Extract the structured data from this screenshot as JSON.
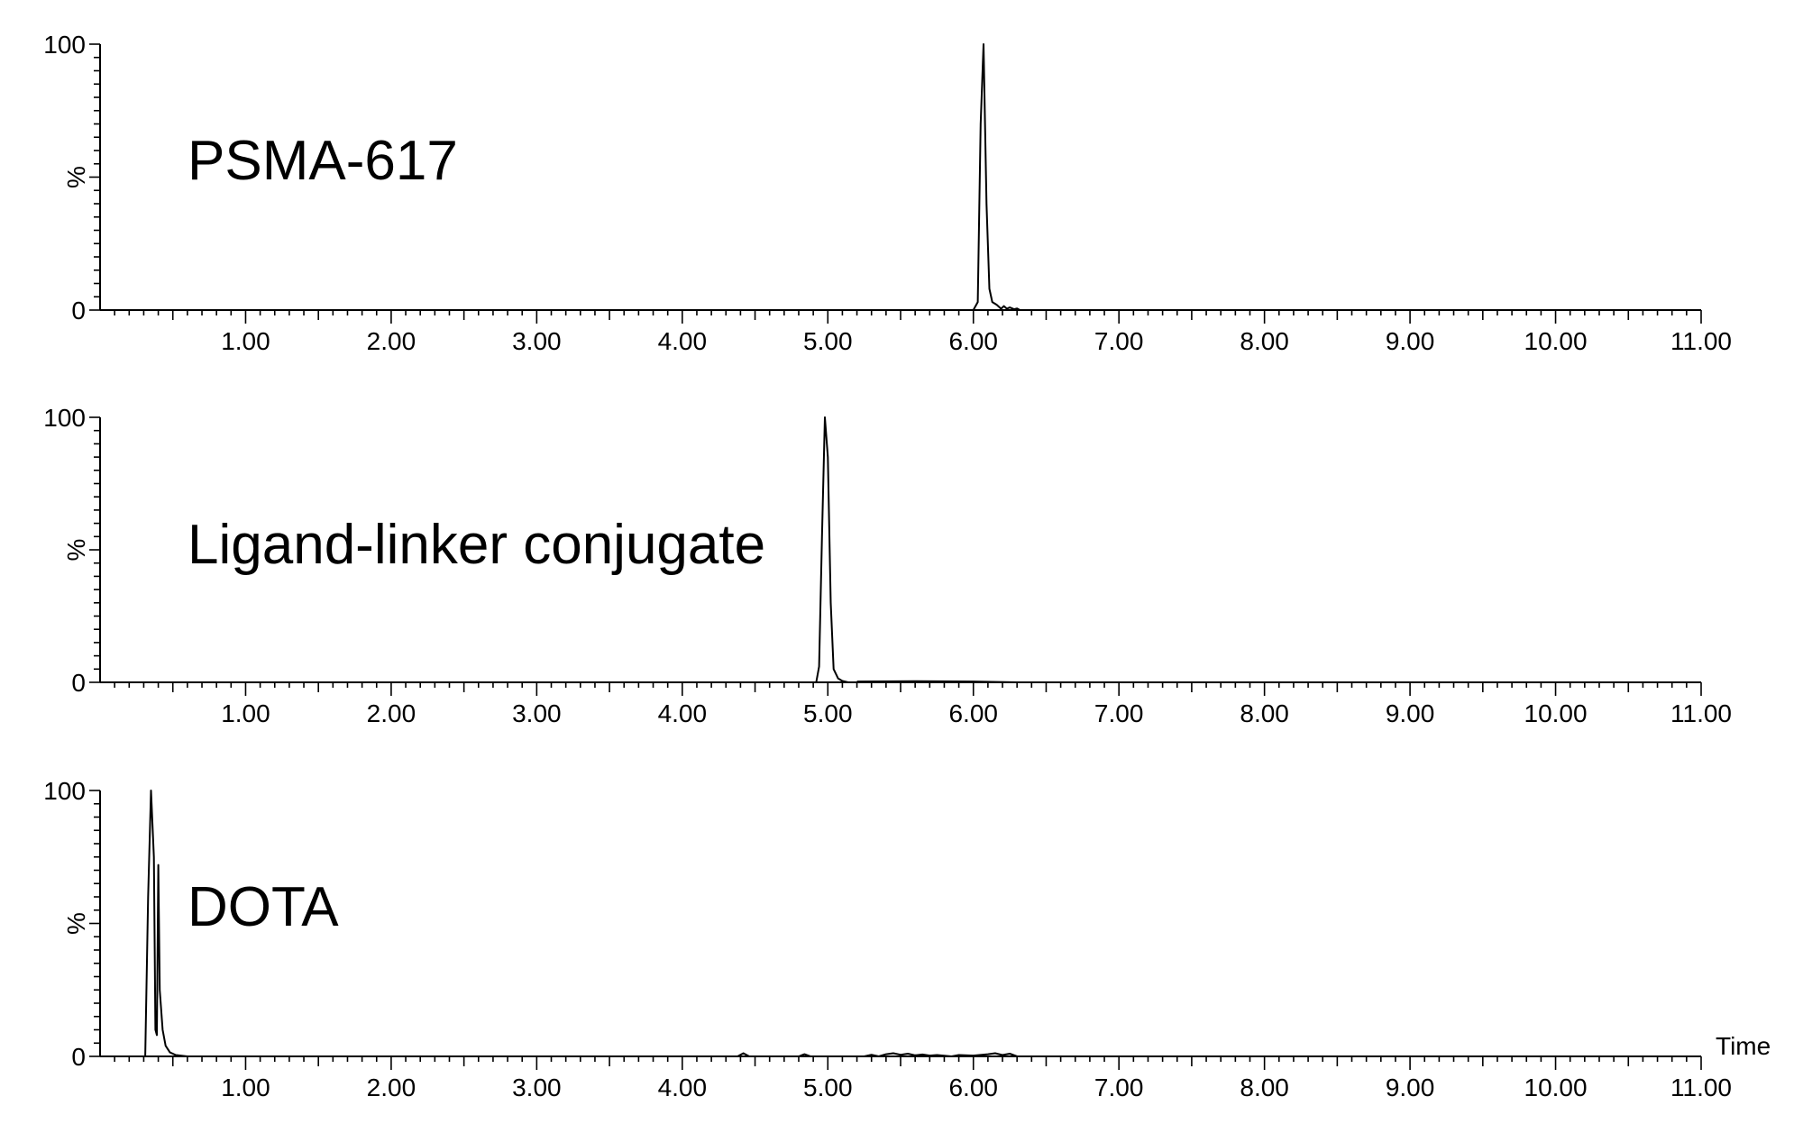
{
  "chart_data": [
    {
      "type": "line",
      "title": "PSMA-617",
      "ylabel": "%",
      "xlabel": "",
      "xlim": [
        0,
        11
      ],
      "ylim": [
        0,
        100
      ],
      "y_tick_labels": [
        "0",
        "100"
      ],
      "x_tick_labels": [
        "1.00",
        "2.00",
        "3.00",
        "4.00",
        "5.00",
        "6.00",
        "7.00",
        "8.00",
        "9.00",
        "10.00",
        "11.00"
      ],
      "grid": false,
      "x": [
        0,
        6.0,
        6.03,
        6.05,
        6.07,
        6.09,
        6.11,
        6.13,
        6.16,
        6.19,
        6.21,
        6.23,
        6.25,
        6.28,
        6.3,
        6.32,
        6.4,
        11.0
      ],
      "y": [
        0,
        0,
        3,
        70,
        100,
        40,
        8,
        3,
        2,
        0.5,
        1.5,
        0.5,
        1,
        0.3,
        0.6,
        0,
        0,
        0
      ]
    },
    {
      "type": "line",
      "title": "Ligand-linker conjugate",
      "ylabel": "%",
      "xlabel": "",
      "xlim": [
        0,
        11
      ],
      "ylim": [
        0,
        100
      ],
      "y_tick_labels": [
        "0",
        "100"
      ],
      "x_tick_labels": [
        "1.00",
        "2.00",
        "3.00",
        "4.00",
        "5.00",
        "6.00",
        "7.00",
        "8.00",
        "9.00",
        "10.00",
        "11.00"
      ],
      "grid": false,
      "x": [
        0,
        4.92,
        4.94,
        4.96,
        4.98,
        5.0,
        5.02,
        5.04,
        5.07,
        5.1,
        5.14,
        6.3,
        11.0
      ],
      "y": [
        0,
        0,
        6,
        55,
        100,
        85,
        30,
        5,
        1.5,
        0.5,
        0,
        0,
        0
      ],
      "noise_x": [
        5.2,
        5.6,
        6.0,
        6.3
      ],
      "noise_y": [
        0.3,
        0.4,
        0.3,
        0
      ]
    },
    {
      "type": "line",
      "title": "DOTA",
      "ylabel": "%",
      "xlabel": "Time",
      "xlim": [
        0,
        11
      ],
      "ylim": [
        0,
        100
      ],
      "y_tick_labels": [
        "0",
        "100"
      ],
      "x_tick_labels": [
        "1.00",
        "2.00",
        "3.00",
        "4.00",
        "5.00",
        "6.00",
        "7.00",
        "8.00",
        "9.00",
        "10.00",
        "11.00"
      ],
      "grid": false,
      "x": [
        0,
        0.3,
        0.31,
        0.33,
        0.35,
        0.37,
        0.38,
        0.39,
        0.4,
        0.41,
        0.43,
        0.45,
        0.48,
        0.52,
        0.6,
        4.38,
        4.42,
        4.46,
        4.8,
        4.84,
        4.88,
        5.25,
        5.3,
        5.35,
        5.4,
        5.45,
        5.5,
        5.55,
        5.6,
        5.65,
        5.7,
        5.75,
        5.85,
        5.9,
        6.0,
        6.1,
        6.15,
        6.2,
        6.25,
        6.3,
        11.0
      ],
      "y": [
        0,
        0,
        0,
        60,
        100,
        75,
        10,
        8,
        72,
        25,
        10,
        4,
        1.5,
        0.5,
        0,
        0,
        1.2,
        0,
        0,
        0.8,
        0,
        0,
        0.6,
        0,
        0.8,
        1.2,
        0.6,
        1,
        0.4,
        0.7,
        0.3,
        0.5,
        0,
        0.5,
        0.3,
        0.8,
        1.2,
        0.5,
        1,
        0,
        0
      ]
    }
  ]
}
